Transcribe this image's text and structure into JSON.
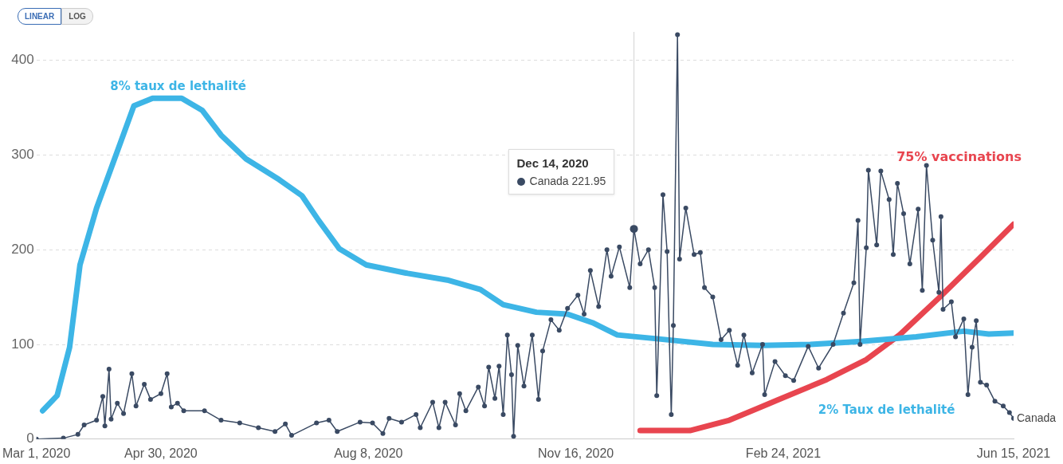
{
  "chart_data": {
    "type": "line",
    "xlim": [
      "2020-03-01",
      "2021-06-15"
    ],
    "xticks": [
      {
        "value": "2020-03-01",
        "label": "Mar 1, 2020"
      },
      {
        "value": "2020-04-30",
        "label": "Apr 30, 2020"
      },
      {
        "value": "2020-08-08",
        "label": "Aug 8, 2020"
      },
      {
        "value": "2020-11-16",
        "label": "Nov 16, 2020"
      },
      {
        "value": "2021-02-24",
        "label": "Feb 24, 2021"
      },
      {
        "value": "2021-06-15",
        "label": "Jun 15, 2021"
      }
    ],
    "ylim": [
      0,
      430
    ],
    "yticks": [
      0,
      100,
      200,
      300,
      400
    ],
    "grid": "y",
    "legend": false,
    "marker": "circle",
    "series": [
      {
        "name": "Canada",
        "color": "#3a4a63",
        "x": [
          "2020-03-01",
          "2020-03-14",
          "2020-03-21",
          "2020-03-24",
          "2020-03-30",
          "2020-04-02",
          "2020-04-03",
          "2020-04-05",
          "2020-04-06",
          "2020-04-09",
          "2020-04-12",
          "2020-04-16",
          "2020-04-18",
          "2020-04-22",
          "2020-04-25",
          "2020-04-30",
          "2020-05-03",
          "2020-05-05",
          "2020-05-08",
          "2020-05-11",
          "2020-05-21",
          "2020-05-29",
          "2020-06-07",
          "2020-06-16",
          "2020-06-24",
          "2020-06-29",
          "2020-07-02",
          "2020-07-14",
          "2020-07-20",
          "2020-07-24",
          "2020-08-04",
          "2020-08-10",
          "2020-08-15",
          "2020-08-18",
          "2020-08-24",
          "2020-08-31",
          "2020-09-02",
          "2020-09-08",
          "2020-09-11",
          "2020-09-14",
          "2020-09-19",
          "2020-09-21",
          "2020-09-24",
          "2020-09-30",
          "2020-10-03",
          "2020-10-05",
          "2020-10-08",
          "2020-10-10",
          "2020-10-12",
          "2020-10-14",
          "2020-10-16",
          "2020-10-17",
          "2020-10-19",
          "2020-10-22",
          "2020-10-26",
          "2020-10-29",
          "2020-10-31",
          "2020-11-04",
          "2020-11-08",
          "2020-11-12",
          "2020-11-17",
          "2020-11-20",
          "2020-11-23",
          "2020-11-27",
          "2020-12-01",
          "2020-12-03",
          "2020-12-07",
          "2020-12-12",
          "2020-12-14",
          "2020-12-17",
          "2020-12-21",
          "2020-12-24",
          "2020-12-25",
          "2020-12-28",
          "2020-12-30",
          "2021-01-01",
          "2021-01-02",
          "2021-01-04",
          "2021-01-05",
          "2021-01-08",
          "2021-01-12",
          "2021-01-15",
          "2021-01-17",
          "2021-01-21",
          "2021-01-25",
          "2021-01-29",
          "2021-02-02",
          "2021-02-05",
          "2021-02-09",
          "2021-02-14",
          "2021-02-15",
          "2021-02-20",
          "2021-02-25",
          "2021-03-01",
          "2021-03-08",
          "2021-03-13",
          "2021-03-20",
          "2021-03-25",
          "2021-03-30",
          "2021-04-01",
          "2021-04-02",
          "2021-04-05",
          "2021-04-06",
          "2021-04-10",
          "2021-04-12",
          "2021-04-16",
          "2021-04-18",
          "2021-04-20",
          "2021-04-23",
          "2021-04-26",
          "2021-04-30",
          "2021-05-02",
          "2021-05-04",
          "2021-05-07",
          "2021-05-10",
          "2021-05-11",
          "2021-05-12",
          "2021-05-16",
          "2021-05-18",
          "2021-05-22",
          "2021-05-24",
          "2021-05-26",
          "2021-05-28",
          "2021-05-30",
          "2021-06-02",
          "2021-06-06",
          "2021-06-10",
          "2021-06-13",
          "2021-06-15"
        ],
        "values": [
          0,
          1,
          5,
          15,
          20,
          45,
          14,
          74,
          21,
          38,
          27,
          69,
          35,
          58,
          42,
          48,
          69,
          34,
          38,
          30,
          30,
          20,
          17,
          12,
          8,
          16,
          4,
          17,
          20,
          8,
          18,
          17,
          6,
          22,
          18,
          26,
          12,
          39,
          12,
          39,
          15,
          48,
          30,
          55,
          35,
          76,
          43,
          77,
          26,
          110,
          68,
          3,
          99,
          56,
          110,
          42,
          93,
          126,
          115,
          138,
          152,
          132,
          178,
          140,
          200,
          172,
          203,
          160,
          221.95,
          185,
          200,
          160,
          46,
          258,
          198,
          26,
          120,
          427,
          190,
          244,
          195,
          197,
          160,
          150,
          105,
          115,
          78,
          110,
          70,
          100,
          47,
          82,
          67,
          62,
          98,
          75,
          100,
          133,
          165,
          231,
          100,
          202,
          284,
          205,
          283,
          253,
          195,
          270,
          238,
          185,
          243,
          157,
          289,
          210,
          155,
          235,
          137,
          145,
          108,
          127,
          47,
          97,
          125,
          60,
          57,
          40,
          35,
          28,
          22
        ]
      },
      {
        "color": "#3db5e6",
        "marker": "none",
        "x": [
          "2020-03-04",
          "2020-03-11",
          "2020-03-17",
          "2020-03-22",
          "2020-03-30",
          "2020-04-09",
          "2020-04-17",
          "2020-04-26",
          "2020-05-10",
          "2020-05-20",
          "2020-05-29",
          "2020-06-10",
          "2020-06-26",
          "2020-07-07",
          "2020-07-15",
          "2020-07-25",
          "2020-08-07",
          "2020-08-27",
          "2020-09-15",
          "2020-10-01",
          "2020-10-12",
          "2020-10-28",
          "2020-11-12",
          "2020-11-24",
          "2020-12-06",
          "2020-12-25",
          "2021-01-21",
          "2021-02-14",
          "2021-03-09",
          "2021-04-01",
          "2021-04-29",
          "2021-05-22",
          "2021-06-03",
          "2021-06-15"
        ],
        "values": [
          30,
          46,
          97,
          184,
          244,
          304,
          352,
          360,
          360,
          347,
          321,
          296,
          274,
          257,
          231,
          201,
          184,
          175,
          168,
          158,
          142,
          134,
          132,
          123,
          110,
          106,
          100,
          99,
          100,
          103,
          108,
          114,
          111,
          112
        ]
      },
      {
        "name": "75% vaccinations",
        "color": "#e8454f",
        "marker": "none",
        "x": [
          "2020-12-17",
          "2021-01-10",
          "2021-01-29",
          "2021-02-21",
          "2021-03-17",
          "2021-04-05",
          "2021-04-21",
          "2021-05-10",
          "2021-05-30",
          "2021-06-15"
        ],
        "values": [
          9,
          9,
          20,
          41,
          63,
          84,
          110,
          149,
          192,
          227
        ]
      }
    ],
    "ref_lines": [
      {
        "axis": "x",
        "value": "2020-12-14",
        "label": null
      }
    ],
    "annotations": [
      "LINEAR",
      "LOG",
      "8% taux de lethalité",
      "2% Taux de lethalité",
      "Dec 14, 2020",
      "Canada 221.95"
    ]
  }
}
